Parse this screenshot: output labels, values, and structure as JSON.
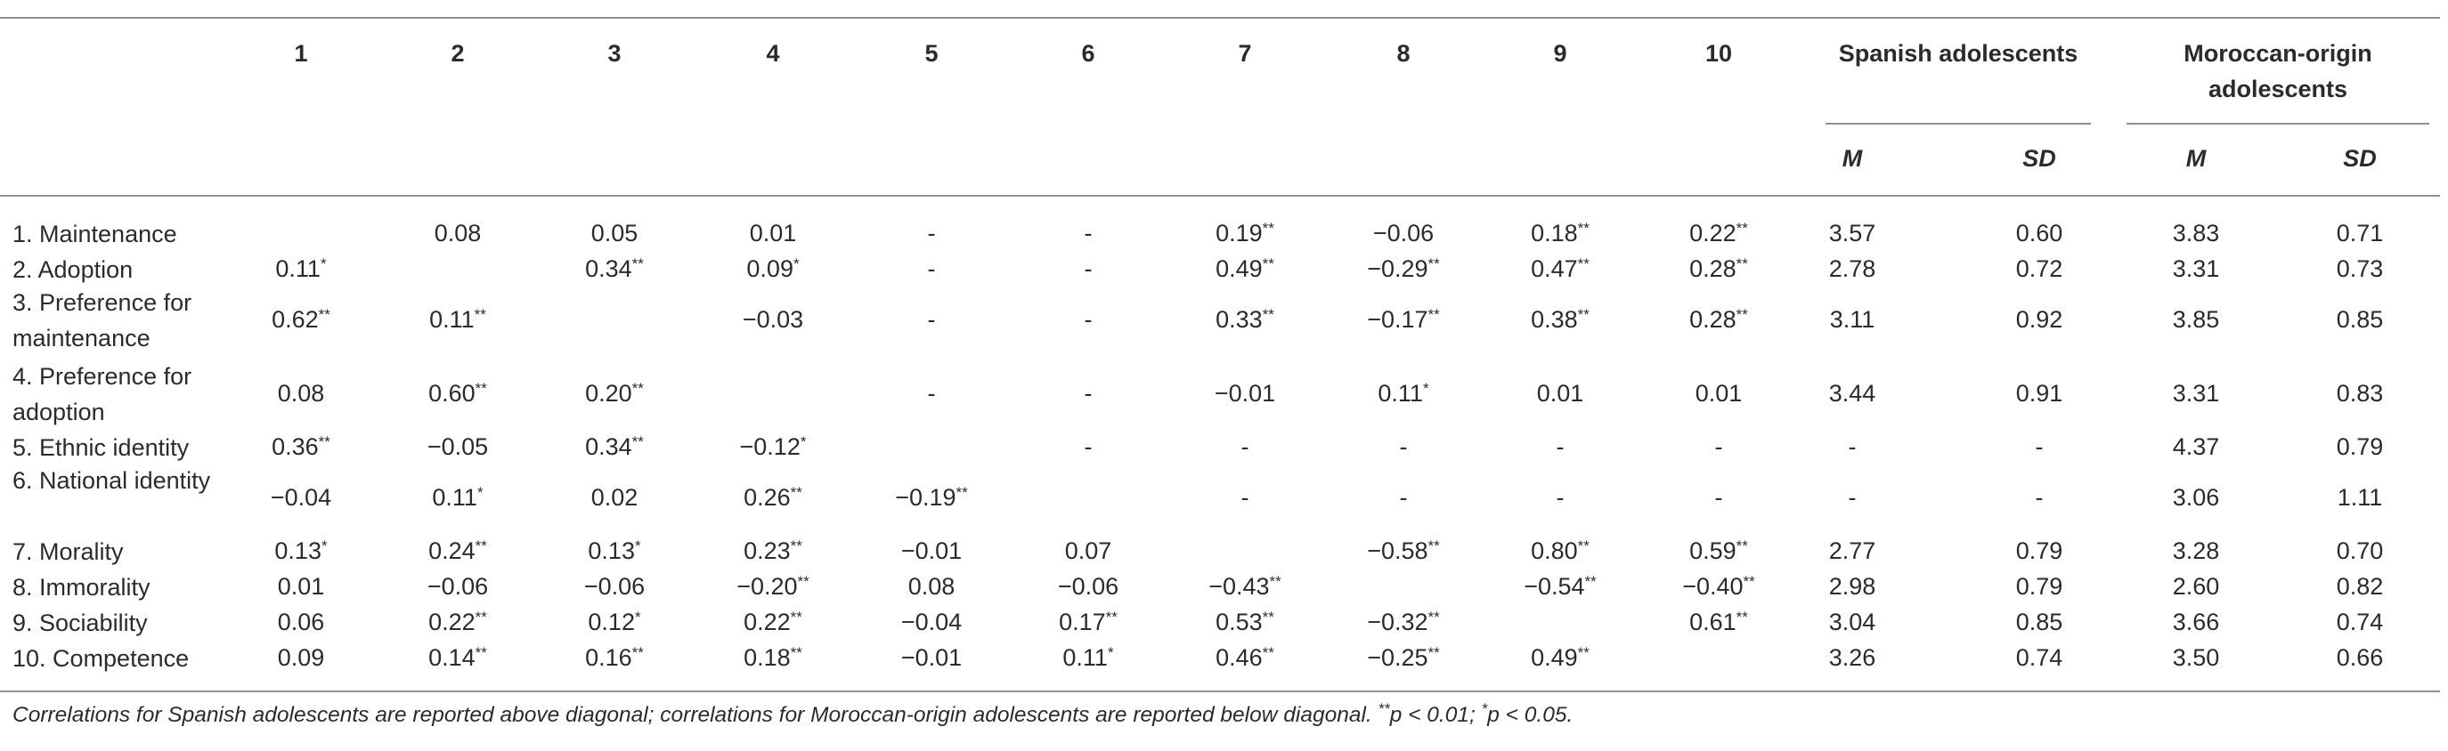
{
  "header": {
    "columns": [
      "1",
      "2",
      "3",
      "4",
      "5",
      "6",
      "7",
      "8",
      "9",
      "10"
    ],
    "groups": [
      {
        "title": "Spanish adolescents",
        "sub": [
          "M",
          "SD"
        ]
      },
      {
        "title": "Moroccan-origin adolescents",
        "sub": [
          "M",
          "SD"
        ]
      }
    ]
  },
  "rows": [
    {
      "label": "1. Maintenance",
      "cells": [
        {
          "v": ""
        },
        {
          "v": "0.08"
        },
        {
          "v": "0.05"
        },
        {
          "v": "0.01"
        },
        {
          "v": "-"
        },
        {
          "v": "-"
        },
        {
          "v": "0.19",
          "s": "**"
        },
        {
          "v": "−0.06"
        },
        {
          "v": "0.18",
          "s": "**"
        },
        {
          "v": "0.22",
          "s": "**"
        },
        {
          "v": "3.57"
        },
        {
          "v": "0.60"
        },
        {
          "v": "3.83"
        },
        {
          "v": "0.71"
        }
      ]
    },
    {
      "label": "2. Adoption",
      "cells": [
        {
          "v": "0.11",
          "s": "*"
        },
        {
          "v": ""
        },
        {
          "v": "0.34",
          "s": "**"
        },
        {
          "v": "0.09",
          "s": "*"
        },
        {
          "v": "-"
        },
        {
          "v": "-"
        },
        {
          "v": "0.49",
          "s": "**"
        },
        {
          "v": "−0.29",
          "s": "**"
        },
        {
          "v": "0.47",
          "s": "**"
        },
        {
          "v": "0.28",
          "s": "**"
        },
        {
          "v": "2.78"
        },
        {
          "v": "0.72"
        },
        {
          "v": "3.31"
        },
        {
          "v": "0.73"
        }
      ]
    },
    {
      "label": "3. Preference for maintenance",
      "cells": [
        {
          "v": "0.62",
          "s": "**"
        },
        {
          "v": "0.11",
          "s": "**"
        },
        {
          "v": ""
        },
        {
          "v": "−0.03"
        },
        {
          "v": "-"
        },
        {
          "v": "-"
        },
        {
          "v": "0.33",
          "s": "**"
        },
        {
          "v": "−0.17",
          "s": "**"
        },
        {
          "v": "0.38",
          "s": "**"
        },
        {
          "v": "0.28",
          "s": "**"
        },
        {
          "v": "3.11"
        },
        {
          "v": "0.92"
        },
        {
          "v": "3.85"
        },
        {
          "v": "0.85"
        }
      ]
    },
    {
      "label": "4. Preference for adoption",
      "cells": [
        {
          "v": "0.08"
        },
        {
          "v": "0.60",
          "s": "**"
        },
        {
          "v": "0.20",
          "s": "**"
        },
        {
          "v": ""
        },
        {
          "v": "-"
        },
        {
          "v": "-"
        },
        {
          "v": "−0.01"
        },
        {
          "v": "0.11",
          "s": "*"
        },
        {
          "v": "0.01"
        },
        {
          "v": "0.01"
        },
        {
          "v": "3.44"
        },
        {
          "v": "0.91"
        },
        {
          "v": "3.31"
        },
        {
          "v": "0.83"
        }
      ]
    },
    {
      "label": "5. Ethnic identity",
      "cells": [
        {
          "v": "0.36",
          "s": "**"
        },
        {
          "v": "−0.05"
        },
        {
          "v": "0.34",
          "s": "**"
        },
        {
          "v": "−0.12",
          "s": "*"
        },
        {
          "v": ""
        },
        {
          "v": "-"
        },
        {
          "v": "-"
        },
        {
          "v": "-"
        },
        {
          "v": "-"
        },
        {
          "v": "-"
        },
        {
          "v": "-"
        },
        {
          "v": "-"
        },
        {
          "v": "4.37"
        },
        {
          "v": "0.79"
        }
      ]
    },
    {
      "label": "6. National identity",
      "cells": [
        {
          "v": "−0.04"
        },
        {
          "v": "0.11",
          "s": "*"
        },
        {
          "v": "0.02"
        },
        {
          "v": "0.26",
          "s": "**"
        },
        {
          "v": "−0.19",
          "s": "**"
        },
        {
          "v": ""
        },
        {
          "v": "-"
        },
        {
          "v": "-"
        },
        {
          "v": "-"
        },
        {
          "v": "-"
        },
        {
          "v": "-"
        },
        {
          "v": "-"
        },
        {
          "v": "3.06"
        },
        {
          "v": "1.11"
        }
      ]
    },
    {
      "label": "7. Morality",
      "cells": [
        {
          "v": "0.13",
          "s": "*"
        },
        {
          "v": "0.24",
          "s": "**"
        },
        {
          "v": "0.13",
          "s": "*"
        },
        {
          "v": "0.23",
          "s": "**"
        },
        {
          "v": "−0.01"
        },
        {
          "v": "0.07"
        },
        {
          "v": ""
        },
        {
          "v": "−0.58",
          "s": "**"
        },
        {
          "v": "0.80",
          "s": "**"
        },
        {
          "v": "0.59",
          "s": "**"
        },
        {
          "v": "2.77"
        },
        {
          "v": "0.79"
        },
        {
          "v": "3.28"
        },
        {
          "v": "0.70"
        }
      ]
    },
    {
      "label": "8. Immorality",
      "cells": [
        {
          "v": "0.01"
        },
        {
          "v": "−0.06"
        },
        {
          "v": "−0.06"
        },
        {
          "v": "−0.20",
          "s": "**"
        },
        {
          "v": "0.08"
        },
        {
          "v": "−0.06"
        },
        {
          "v": "−0.43",
          "s": "**"
        },
        {
          "v": ""
        },
        {
          "v": "−0.54",
          "s": "**"
        },
        {
          "v": "−0.40",
          "s": "**"
        },
        {
          "v": "2.98"
        },
        {
          "v": "0.79"
        },
        {
          "v": "2.60"
        },
        {
          "v": "0.82"
        }
      ]
    },
    {
      "label": "9. Sociability",
      "cells": [
        {
          "v": "0.06"
        },
        {
          "v": "0.22",
          "s": "**"
        },
        {
          "v": "0.12",
          "s": "*"
        },
        {
          "v": "0.22",
          "s": "**"
        },
        {
          "v": "−0.04"
        },
        {
          "v": "0.17",
          "s": "**"
        },
        {
          "v": "0.53",
          "s": "**"
        },
        {
          "v": "−0.32",
          "s": "**"
        },
        {
          "v": ""
        },
        {
          "v": "0.61",
          "s": "**"
        },
        {
          "v": "3.04"
        },
        {
          "v": "0.85"
        },
        {
          "v": "3.66"
        },
        {
          "v": "0.74"
        }
      ]
    },
    {
      "label": "10. Competence",
      "cells": [
        {
          "v": "0.09"
        },
        {
          "v": "0.14",
          "s": "**"
        },
        {
          "v": "0.16",
          "s": "**"
        },
        {
          "v": "0.18",
          "s": "**"
        },
        {
          "v": "−0.01"
        },
        {
          "v": "0.11",
          "s": "*"
        },
        {
          "v": "0.46",
          "s": "**"
        },
        {
          "v": "−0.25",
          "s": "**"
        },
        {
          "v": "0.49",
          "s": "**"
        },
        {
          "v": ""
        },
        {
          "v": "3.26"
        },
        {
          "v": "0.74"
        },
        {
          "v": "3.50"
        },
        {
          "v": "0.66"
        }
      ]
    }
  ],
  "note": {
    "part1": "Correlations for Spanish adolescents are reported above diagonal; correlations for Moroccan-origin adolescents are reported below diagonal. ",
    "sup1": "**",
    "part2": "p < 0.01;  ",
    "sup2": "*",
    "part3": "p < 0.05."
  }
}
